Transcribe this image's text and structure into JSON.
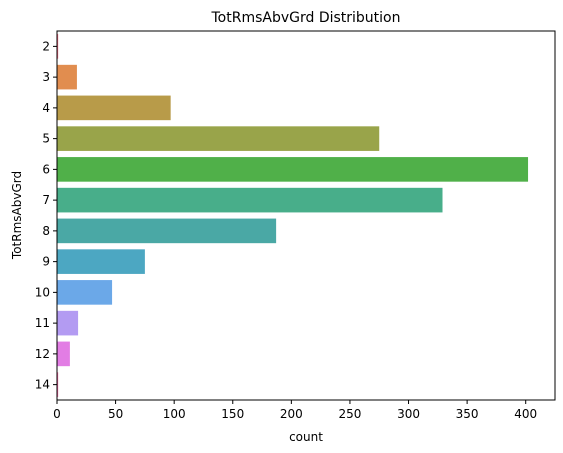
{
  "chart_data": {
    "type": "bar",
    "orientation": "horizontal",
    "title": "TotRmsAbvGrd Distribution",
    "xlabel": "count",
    "ylabel": "TotRmsAbvGrd",
    "categories": [
      "2",
      "3",
      "4",
      "5",
      "6",
      "7",
      "8",
      "9",
      "10",
      "11",
      "12",
      "14"
    ],
    "values": [
      1,
      17,
      97,
      275,
      402,
      329,
      187,
      75,
      47,
      18,
      11,
      1
    ],
    "colors": [
      "#f77189",
      "#e18d4f",
      "#b89b49",
      "#99a44a",
      "#50b049",
      "#48ae8a",
      "#4aa8a5",
      "#4ca7c2",
      "#6ba8e8",
      "#b39bf2",
      "#e27de4",
      "#f66ea8"
    ],
    "xlim": [
      0,
      425
    ],
    "xticks": [
      0,
      50,
      100,
      150,
      200,
      250,
      300,
      350,
      400
    ],
    "grid": false
  }
}
